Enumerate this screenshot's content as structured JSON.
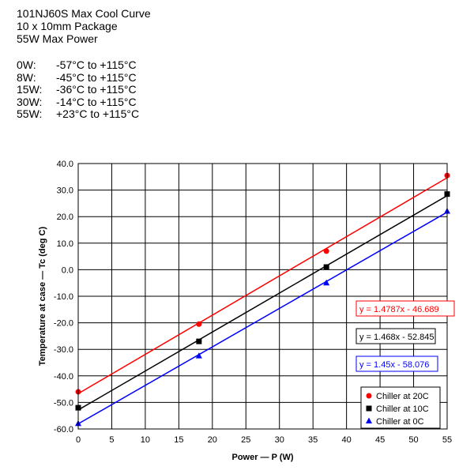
{
  "header": {
    "title": "101NJ60S Max Cool Curve",
    "package": "10 x 10mm Package",
    "max_power": "55W Max Power"
  },
  "specs": [
    {
      "power": "0W:",
      "range": "-57°C to +115°C"
    },
    {
      "power": "8W:",
      "range": "-45°C to +115°C"
    },
    {
      "power": "15W:",
      "range": "-36°C to +115°C"
    },
    {
      "power": "30W:",
      "range": "-14°C to +115°C"
    },
    {
      "power": "55W:",
      "range": "+23°C to +115°C"
    }
  ],
  "chart_data": {
    "type": "scatter",
    "xlabel": "Power — P (W)",
    "ylabel": "Temperature at case — Tc (deg C)",
    "xlim": [
      0,
      55
    ],
    "ylim": [
      -60,
      40
    ],
    "xticks": [
      "0",
      "5",
      "10",
      "15",
      "20",
      "25",
      "30",
      "35",
      "40",
      "45",
      "50",
      "55"
    ],
    "yticks": [
      "40.0",
      "30.0",
      "20.0",
      "10.0",
      "0.0",
      "-10.0",
      "-20.0",
      "-30.0",
      "-40.0",
      "-50.0",
      "-60.0"
    ],
    "grid": true,
    "legend_position": "bottom-right",
    "series": [
      {
        "name": "Chiller at 20C",
        "color": "#ff0000",
        "marker": "circle",
        "x": [
          0,
          18,
          37,
          55
        ],
        "y": [
          -46,
          -20.5,
          7,
          35.5
        ],
        "trendline": {
          "slope": 1.4787,
          "intercept": -46.689,
          "label": "y = 1.4787x - 46.689"
        }
      },
      {
        "name": "Chiller at 10C",
        "color": "#000000",
        "marker": "square",
        "x": [
          0,
          18,
          37,
          55
        ],
        "y": [
          -52,
          -27,
          1,
          28.5
        ],
        "trendline": {
          "slope": 1.468,
          "intercept": -52.845,
          "label": "y = 1.468x - 52.845"
        }
      },
      {
        "name": "Chiller at 0C",
        "color": "#0000ff",
        "marker": "triangle",
        "x": [
          0,
          18,
          37,
          55
        ],
        "y": [
          -58,
          -32.5,
          -5,
          22
        ],
        "trendline": {
          "slope": 1.45,
          "intercept": -58.076,
          "label": "y = 1.45x - 58.076"
        }
      }
    ]
  }
}
